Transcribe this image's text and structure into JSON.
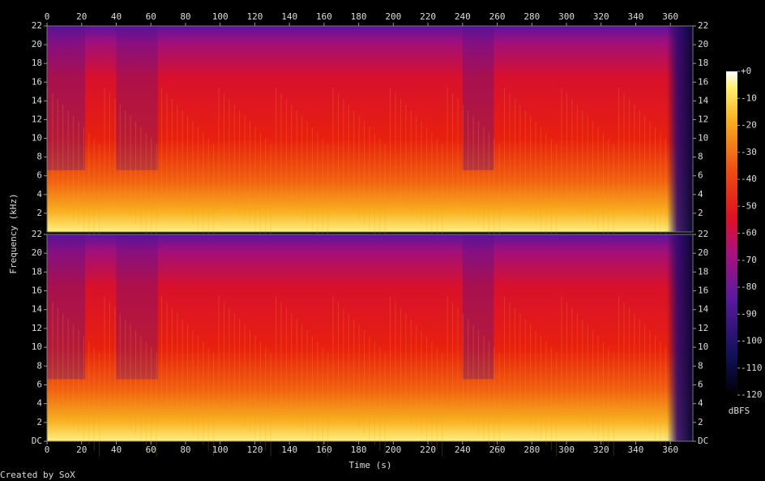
{
  "chart_data": {
    "type": "spectrogram",
    "x_label": "Time (s)",
    "y_label": "Frequency (kHz)",
    "credit": "Created by SoX",
    "xlim": [
      0,
      373
    ],
    "xticks": [
      0,
      20,
      40,
      60,
      80,
      100,
      120,
      140,
      160,
      180,
      200,
      220,
      240,
      260,
      280,
      300,
      320,
      340,
      360
    ],
    "panels": [
      {
        "ylim": [
          0,
          22
        ],
        "yticks": [
          2,
          4,
          6,
          8,
          10,
          12,
          14,
          16,
          18,
          20,
          22
        ]
      },
      {
        "ylim": [
          0,
          22
        ],
        "yticks": [
          {
            "value": 0,
            "label": "DC"
          },
          2,
          4,
          6,
          8,
          10,
          12,
          14,
          16,
          18,
          20,
          22
        ]
      }
    ],
    "colorbar": {
      "label": "dBFS",
      "lim": [
        -120,
        0
      ],
      "ticks": [
        {
          "value": 0,
          "label": "+0"
        },
        -10,
        -20,
        -30,
        -40,
        -50,
        -60,
        -70,
        -80,
        -90,
        -100,
        -110,
        -120
      ]
    }
  }
}
